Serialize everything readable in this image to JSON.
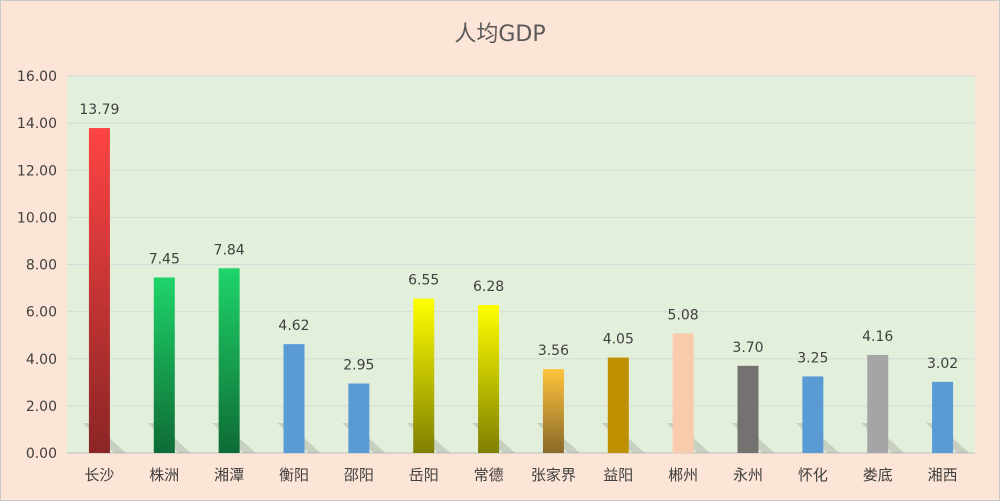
{
  "chart_data": {
    "type": "bar",
    "title": "人均GDP",
    "xlabel": "",
    "ylabel": "",
    "ylim": [
      0,
      16
    ],
    "yticks": [
      "0.00",
      "2.00",
      "4.00",
      "6.00",
      "8.00",
      "10.00",
      "12.00",
      "14.00",
      "16.00"
    ],
    "grid": true,
    "legend": "none",
    "categories": [
      "长沙",
      "株洲",
      "湘潭",
      "衡阳",
      "邵阳",
      "岳阳",
      "常德",
      "张家界",
      "益阳",
      "郴州",
      "永州",
      "怀化",
      "娄底",
      "湘西"
    ],
    "values": [
      13.79,
      7.45,
      7.84,
      4.62,
      2.95,
      6.55,
      6.28,
      3.56,
      4.05,
      5.08,
      3.7,
      3.25,
      4.16,
      3.02
    ],
    "data_labels": [
      "13.79",
      "7.45",
      "7.84",
      "4.62",
      "2.95",
      "6.55",
      "6.28",
      "3.56",
      "4.05",
      "5.08",
      "3.70",
      "3.25",
      "4.16",
      "3.02"
    ],
    "colors": [
      [
        "#FF4444",
        "#8B2525"
      ],
      [
        "#1FD46A",
        "#0E6B35"
      ],
      [
        "#1FD46A",
        "#0E6B35"
      ],
      [
        "#5B9BD5",
        "#5B9BD5"
      ],
      [
        "#5B9BD5",
        "#5B9BD5"
      ],
      [
        "#FFFF00",
        "#7F7F00"
      ],
      [
        "#FFFF00",
        "#7F7F00"
      ],
      [
        "#FFC33C",
        "#8A6A2A"
      ],
      [
        "#BF9000",
        "#BF9000"
      ],
      [
        "#F8CBAD",
        "#F8CBAD"
      ],
      [
        "#767171",
        "#767171"
      ],
      [
        "#5B9BD5",
        "#5B9BD5"
      ],
      [
        "#A5A5A5",
        "#A5A5A5"
      ],
      [
        "#5B9BD5",
        "#5B9BD5"
      ]
    ],
    "plot_background": "#E2EFDA",
    "page_background": "#FCE4D6",
    "grid_color": "#D9D9D9"
  }
}
